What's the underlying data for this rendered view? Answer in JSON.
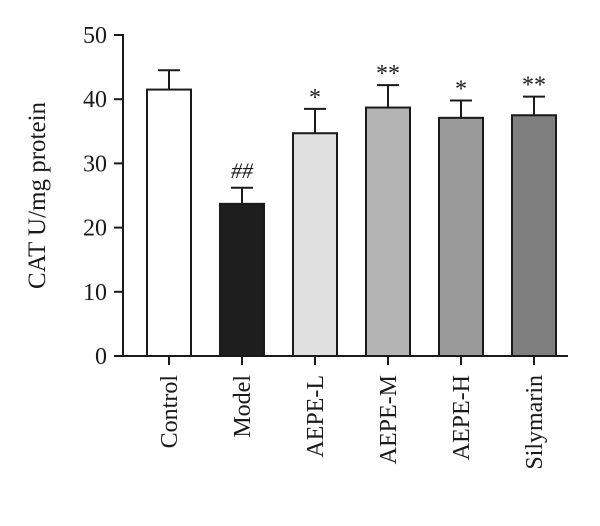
{
  "chart_data": {
    "type": "bar",
    "ylabel": "CAT U/mg protein",
    "xlabel": "",
    "ylim": [
      0,
      50
    ],
    "yticks": [
      0,
      10,
      20,
      30,
      40,
      50
    ],
    "grid": false,
    "categories": [
      "Control",
      "Model",
      "AEPE-L",
      "AEPE-M",
      "AEPE-H",
      "Silymarin"
    ],
    "values": [
      41.5,
      23.7,
      34.7,
      38.7,
      37.1,
      37.5
    ],
    "errors": [
      3.0,
      2.5,
      3.8,
      3.5,
      2.7,
      2.9
    ],
    "annotations": [
      "",
      "##",
      "*",
      "**",
      "*",
      "**"
    ],
    "colors": [
      "#ffffff",
      "#1e1e1e",
      "#e0e0e0",
      "#b4b4b4",
      "#9a9a9a",
      "#7e7e7e"
    ]
  }
}
